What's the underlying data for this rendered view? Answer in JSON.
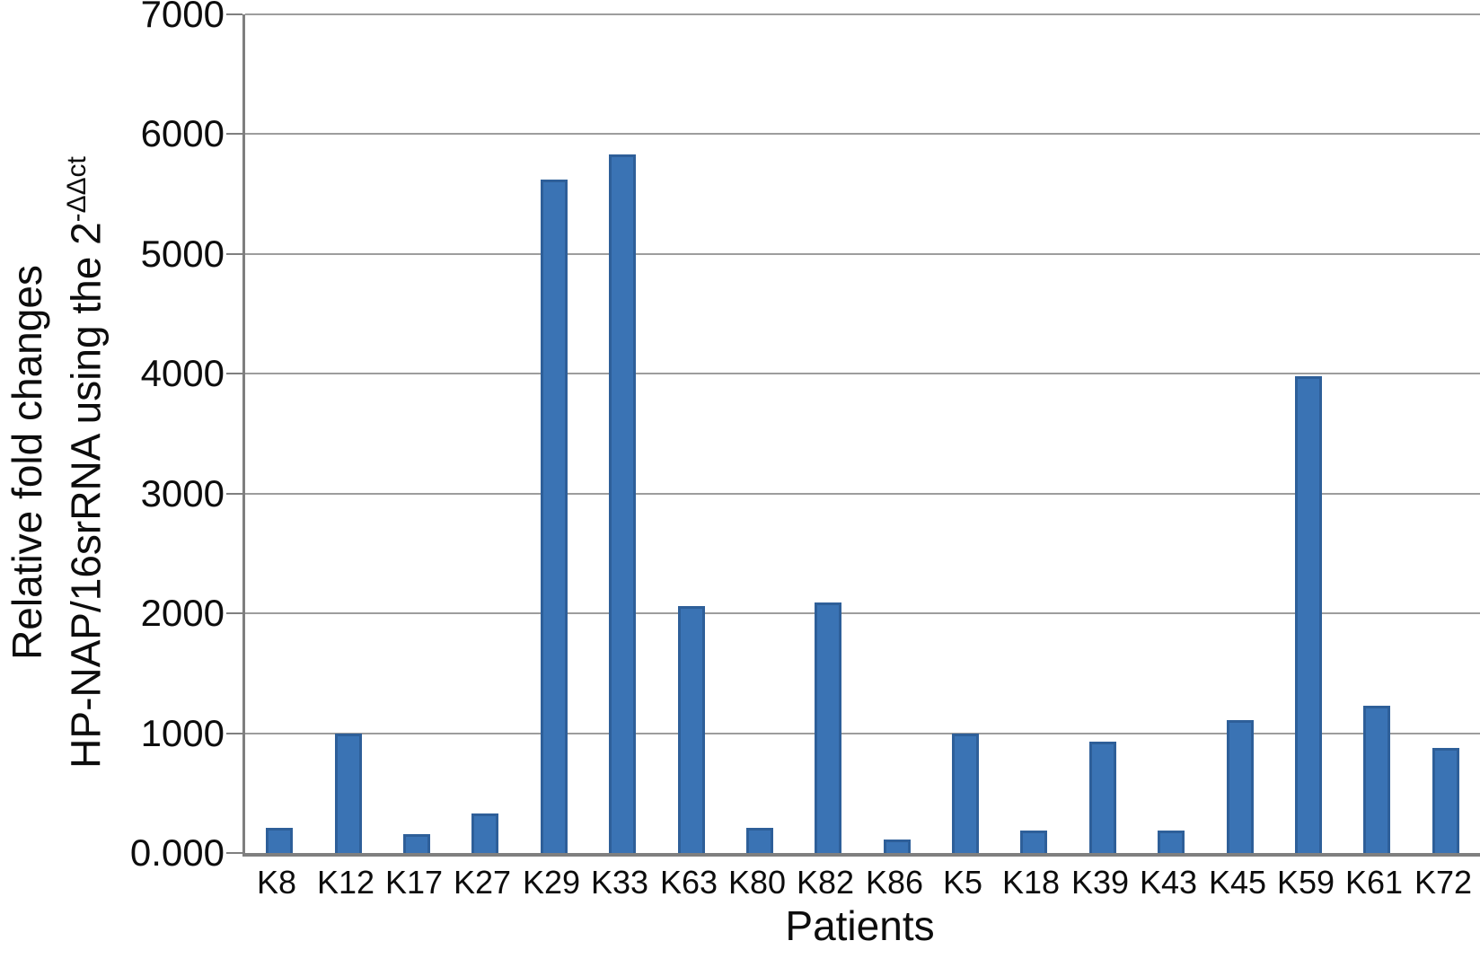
{
  "chart_data": {
    "type": "bar",
    "title": "",
    "xlabel": "Patients",
    "ylabel_line1": "Relative fold changes",
    "ylabel_line2_base": "HP-NAP/16srRNA using the 2",
    "ylabel_superscript": "-ΔΔct",
    "categories": [
      "K8",
      "K12",
      "K17",
      "K27",
      "K29",
      "K33",
      "K63",
      "K80",
      "K82",
      "K86",
      "K5",
      "K18",
      "K39",
      "K43",
      "K45",
      "K59",
      "K61",
      "K72"
    ],
    "values": [
      210,
      1000,
      160,
      330,
      5620,
      5830,
      2060,
      210,
      2090,
      110,
      1000,
      185,
      930,
      185,
      1110,
      3980,
      1230,
      880
    ],
    "ylim": [
      0,
      7000
    ],
    "ytick_interval": 1000,
    "ytick_labels": [
      "0.000",
      "1000",
      "2000",
      "3000",
      "4000",
      "5000",
      "6000",
      "7000"
    ],
    "grid": "horizontal-only",
    "legend": "none",
    "bar_color": "#3a73b4",
    "bar_edge_color": "#2e5f99",
    "grid_color": "#9d9d9d",
    "axis_color": "#7f7f7f"
  }
}
